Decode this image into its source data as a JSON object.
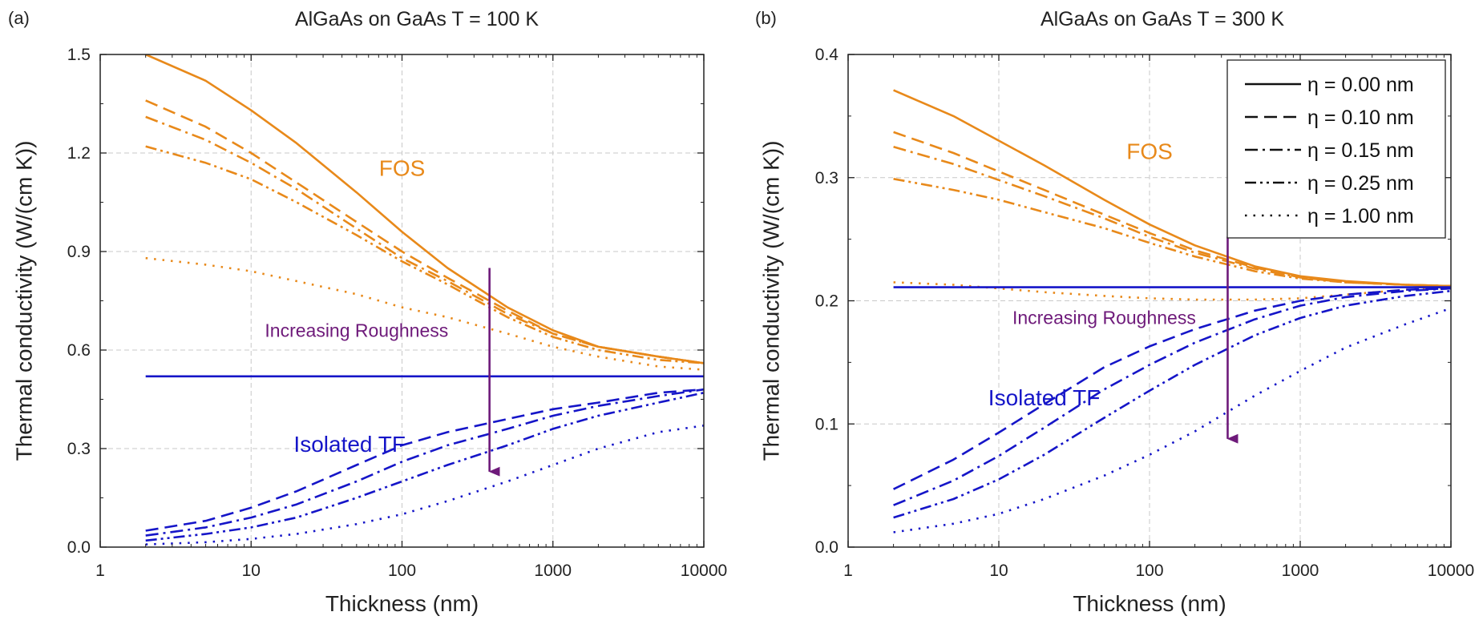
{
  "chart_data": [
    {
      "type": "line",
      "panel_label": "(a)",
      "title": "AlGaAs on GaAs T = 100 K",
      "xlabel": "Thickness (nm)",
      "ylabel": "Thermal conductivity (W/(cm K))",
      "x_scale": "log",
      "xlim": [
        1,
        10000
      ],
      "ylim": [
        0,
        1.5
      ],
      "xticks": [
        1,
        10,
        100,
        1000,
        10000
      ],
      "xtick_labels": [
        "1",
        "10",
        "100",
        "1000",
        "10000"
      ],
      "yticks": [
        0,
        0.3,
        0.6,
        0.9,
        1.2,
        1.5
      ],
      "ytick_labels": [
        "0.0",
        "0.3",
        "0.6",
        "0.9",
        "1.2",
        "1.5"
      ],
      "grid": true,
      "legend": null,
      "x": [
        2,
        5,
        10,
        20,
        50,
        100,
        200,
        500,
        1000,
        2000,
        5000,
        10000
      ],
      "series": [
        {
          "group": "FOS",
          "eta_nm": 0.0,
          "color": "#E8891A",
          "dash": "solid",
          "values": [
            1.5,
            1.42,
            1.33,
            1.23,
            1.08,
            0.96,
            0.85,
            0.73,
            0.66,
            0.61,
            0.58,
            0.56
          ]
        },
        {
          "group": "FOS",
          "eta_nm": 0.1,
          "color": "#E8891A",
          "dash": "dash",
          "values": [
            1.36,
            1.28,
            1.2,
            1.11,
            0.99,
            0.9,
            0.82,
            0.72,
            0.65,
            0.61,
            0.58,
            0.56
          ]
        },
        {
          "group": "FOS",
          "eta_nm": 0.15,
          "color": "#E8891A",
          "dash": "dashdot",
          "values": [
            1.31,
            1.24,
            1.17,
            1.09,
            0.97,
            0.88,
            0.81,
            0.71,
            0.65,
            0.61,
            0.58,
            0.56
          ]
        },
        {
          "group": "FOS",
          "eta_nm": 0.25,
          "color": "#E8891A",
          "dash": "dashdotdot",
          "values": [
            1.22,
            1.17,
            1.12,
            1.05,
            0.95,
            0.87,
            0.8,
            0.7,
            0.64,
            0.6,
            0.57,
            0.56
          ]
        },
        {
          "group": "FOS",
          "eta_nm": 1.0,
          "color": "#E8891A",
          "dash": "dot",
          "values": [
            0.88,
            0.86,
            0.84,
            0.81,
            0.77,
            0.73,
            0.7,
            0.65,
            0.61,
            0.58,
            0.55,
            0.54
          ]
        },
        {
          "group": "Isolated TF",
          "eta_nm": 0.0,
          "color": "#1515C8",
          "dash": "solid",
          "values": [
            0.52,
            0.52,
            0.52,
            0.52,
            0.52,
            0.52,
            0.52,
            0.52,
            0.52,
            0.52,
            0.52,
            0.52
          ]
        },
        {
          "group": "Isolated TF",
          "eta_nm": 0.1,
          "color": "#1515C8",
          "dash": "dash",
          "values": [
            0.05,
            0.08,
            0.12,
            0.17,
            0.25,
            0.31,
            0.35,
            0.39,
            0.42,
            0.44,
            0.47,
            0.48
          ]
        },
        {
          "group": "Isolated TF",
          "eta_nm": 0.15,
          "color": "#1515C8",
          "dash": "dashdot",
          "values": [
            0.035,
            0.06,
            0.09,
            0.13,
            0.2,
            0.26,
            0.31,
            0.36,
            0.4,
            0.43,
            0.46,
            0.48
          ]
        },
        {
          "group": "Isolated TF",
          "eta_nm": 0.25,
          "color": "#1515C8",
          "dash": "dashdotdot",
          "values": [
            0.02,
            0.04,
            0.06,
            0.09,
            0.15,
            0.2,
            0.25,
            0.31,
            0.36,
            0.4,
            0.44,
            0.47
          ]
        },
        {
          "group": "Isolated TF",
          "eta_nm": 1.0,
          "color": "#1515C8",
          "dash": "dot",
          "values": [
            0.008,
            0.015,
            0.025,
            0.04,
            0.07,
            0.1,
            0.14,
            0.2,
            0.25,
            0.3,
            0.35,
            0.37
          ]
        }
      ],
      "annotations": [
        {
          "text": "FOS",
          "color": "#E8891A",
          "x": 100,
          "y": 1.13,
          "size": "large"
        },
        {
          "text": "Increasing Roughness",
          "color": "#6E1A7A",
          "x": 50,
          "y": 0.64,
          "size": "small"
        },
        {
          "text": "Isolated TF",
          "color": "#1515C8",
          "x": 45,
          "y": 0.29,
          "size": "large"
        }
      ],
      "arrow": {
        "color": "#6E1A7A",
        "x": 380,
        "y_start": 0.85,
        "y_end": 0.23
      }
    },
    {
      "type": "line",
      "panel_label": "(b)",
      "title": "AlGaAs on GaAs T = 300 K",
      "xlabel": "Thickness (nm)",
      "ylabel": "Thermal conductivity (W/(cm K))",
      "x_scale": "log",
      "xlim": [
        1,
        10000
      ],
      "ylim": [
        0,
        0.4
      ],
      "xticks": [
        1,
        10,
        100,
        1000,
        10000
      ],
      "xtick_labels": [
        "1",
        "10",
        "100",
        "1000",
        "10000"
      ],
      "yticks": [
        0,
        0.1,
        0.2,
        0.3,
        0.4
      ],
      "ytick_labels": [
        "0.0",
        "0.1",
        "0.2",
        "0.3",
        "0.4"
      ],
      "grid": true,
      "legend": {
        "position": "top-right",
        "entries": [
          {
            "label": "η = 0.00 nm",
            "dash": "solid"
          },
          {
            "label": "η = 0.10 nm",
            "dash": "dash"
          },
          {
            "label": "η = 0.15 nm",
            "dash": "dashdot"
          },
          {
            "label": "η = 0.25 nm",
            "dash": "dashdotdot"
          },
          {
            "label": "η = 1.00 nm",
            "dash": "dot"
          }
        ]
      },
      "x": [
        2,
        5,
        10,
        20,
        50,
        100,
        200,
        500,
        1000,
        2000,
        5000,
        10000
      ],
      "series": [
        {
          "group": "FOS",
          "eta_nm": 0.0,
          "color": "#E8891A",
          "dash": "solid",
          "values": [
            0.371,
            0.35,
            0.33,
            0.31,
            0.282,
            0.262,
            0.245,
            0.228,
            0.22,
            0.216,
            0.213,
            0.212
          ]
        },
        {
          "group": "FOS",
          "eta_nm": 0.1,
          "color": "#E8891A",
          "dash": "dash",
          "values": [
            0.337,
            0.32,
            0.305,
            0.29,
            0.27,
            0.255,
            0.241,
            0.227,
            0.219,
            0.215,
            0.213,
            0.212
          ]
        },
        {
          "group": "FOS",
          "eta_nm": 0.15,
          "color": "#E8891A",
          "dash": "dashdot",
          "values": [
            0.325,
            0.311,
            0.298,
            0.285,
            0.267,
            0.252,
            0.239,
            0.226,
            0.219,
            0.215,
            0.213,
            0.212
          ]
        },
        {
          "group": "FOS",
          "eta_nm": 0.25,
          "color": "#E8891A",
          "dash": "dashdotdot",
          "values": [
            0.299,
            0.29,
            0.282,
            0.272,
            0.259,
            0.247,
            0.236,
            0.224,
            0.218,
            0.215,
            0.213,
            0.212
          ]
        },
        {
          "group": "FOS",
          "eta_nm": 1.0,
          "color": "#E8891A",
          "dash": "dot",
          "values": [
            0.215,
            0.213,
            0.21,
            0.207,
            0.204,
            0.202,
            0.201,
            0.201,
            0.202,
            0.205,
            0.209,
            0.211
          ]
        },
        {
          "group": "Isolated TF",
          "eta_nm": 0.0,
          "color": "#1515C8",
          "dash": "solid",
          "values": [
            0.211,
            0.211,
            0.211,
            0.211,
            0.211,
            0.211,
            0.211,
            0.211,
            0.211,
            0.211,
            0.211,
            0.211
          ]
        },
        {
          "group": "Isolated TF",
          "eta_nm": 0.1,
          "color": "#1515C8",
          "dash": "dash",
          "values": [
            0.047,
            0.071,
            0.093,
            0.116,
            0.146,
            0.163,
            0.177,
            0.192,
            0.2,
            0.205,
            0.209,
            0.21
          ]
        },
        {
          "group": "Isolated TF",
          "eta_nm": 0.15,
          "color": "#1515C8",
          "dash": "dashdot",
          "values": [
            0.034,
            0.054,
            0.074,
            0.097,
            0.128,
            0.148,
            0.166,
            0.185,
            0.196,
            0.203,
            0.208,
            0.21
          ]
        },
        {
          "group": "Isolated TF",
          "eta_nm": 0.25,
          "color": "#1515C8",
          "dash": "dashdotdot",
          "values": [
            0.024,
            0.039,
            0.055,
            0.075,
            0.105,
            0.127,
            0.148,
            0.172,
            0.186,
            0.196,
            0.204,
            0.208
          ]
        },
        {
          "group": "Isolated TF",
          "eta_nm": 1.0,
          "color": "#1515C8",
          "dash": "dot",
          "values": [
            0.012,
            0.019,
            0.027,
            0.039,
            0.058,
            0.075,
            0.094,
            0.123,
            0.143,
            0.162,
            0.181,
            0.194
          ]
        }
      ],
      "annotations": [
        {
          "text": "FOS",
          "color": "#E8891A",
          "x": 100,
          "y": 0.315,
          "size": "large"
        },
        {
          "text": "Increasing Roughness",
          "color": "#6E1A7A",
          "x": 50,
          "y": 0.181,
          "size": "small"
        },
        {
          "text": "Isolated TF",
          "color": "#1515C8",
          "x": 20,
          "y": 0.115,
          "size": "large"
        }
      ],
      "arrow": {
        "color": "#6E1A7A",
        "x": 330,
        "y_start": 0.252,
        "y_end": 0.088
      }
    }
  ]
}
